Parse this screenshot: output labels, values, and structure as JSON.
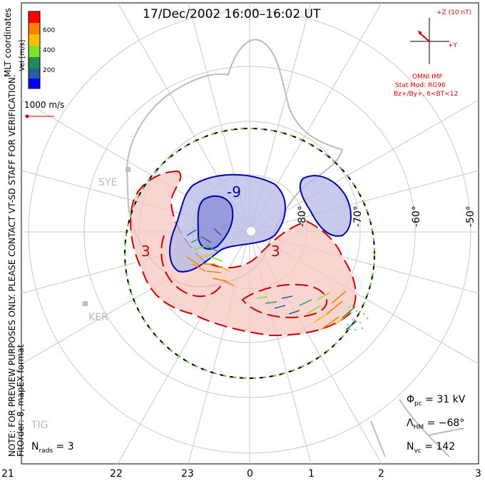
{
  "title": "17/Dec/2002 16:00–16:02 UT",
  "note_line1": "NOTE: FOR PREVIEW PURPOSES ONLY. PLEASE CONTACT VT-SD STAFF FOR VERIFICATION.",
  "note_line2": "FitOrder: 8, mapEX format",
  "mlt_label": "MLT coordinates",
  "colorbar": {
    "unit_label": "Vel [m/s]",
    "ticks": [
      "600",
      "400",
      "200"
    ],
    "colors": [
      "#ff0000",
      "#ff7f00",
      "#ffbf00",
      "#7fe02a",
      "#1e8c5a",
      "#2a5fa5",
      "#0000ff"
    ]
  },
  "velocity_reference": "1000 m/s",
  "imf": {
    "z_label": "+Z (10 nT)",
    "y_label": "+Y",
    "source": "OMNI IMF",
    "model": "Stat Mod: RG96",
    "condition": "Bz+/By+, 6<BT<12"
  },
  "mlt_ticks": [
    "21",
    "22",
    "23",
    "0",
    "1",
    "2",
    "3"
  ],
  "latitude_labels": [
    "-80°",
    "-70°",
    "-60°",
    "-50°"
  ],
  "sites": [
    "SYE",
    "KER",
    "TIG"
  ],
  "contours": {
    "negative": "-9",
    "positive_left": "3",
    "positive_right": "3"
  },
  "stats": {
    "phi_pc_symbol": "Φ",
    "phi_pc_sub": "pc",
    "phi_pc_value": " = 31 kV",
    "lambda_symbol": "Λ",
    "lambda_sub": "HM",
    "lambda_value": " = −68°",
    "nvc_symbol": "N",
    "nvc_sub": "vc",
    "nvc_value": " = 142",
    "nrads_symbol": "N",
    "nrads_sub": "rads",
    "nrads_value": " = 3"
  },
  "colors": {
    "negative_fill": "#b9bde6",
    "positive_fill": "#f6c7c2",
    "contour_blue": "#0000aa",
    "contour_red": "#cc0000",
    "imf_red": "#d40000",
    "boundary_green": "#66cc33"
  }
}
